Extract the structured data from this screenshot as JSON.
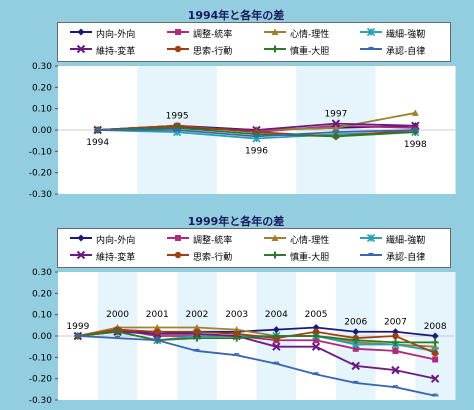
{
  "series_styles": [
    {
      "name": "内向-外向",
      "color": "#1a1a7a",
      "marker": "diamond"
    },
    {
      "name": "調整-統率",
      "color": "#b0297a",
      "marker": "square"
    },
    {
      "name": "心情-理性",
      "color": "#a08030",
      "marker": "triangle"
    },
    {
      "name": "繊細-強靭",
      "color": "#2aa0b0",
      "marker": "cross"
    },
    {
      "name": "維持-変革",
      "color": "#6a1a80",
      "marker": "x"
    },
    {
      "name": "思索-行動",
      "color": "#a04010",
      "marker": "circle"
    },
    {
      "name": "慎重-大胆",
      "color": "#2a7a2a",
      "marker": "plus"
    },
    {
      "name": "承認-自律",
      "color": "#3a66b0",
      "marker": "dash"
    }
  ],
  "chart_data": [
    {
      "type": "line",
      "title": "1994年と各年の差",
      "x": [
        "1994",
        "1995",
        "1996",
        "1997",
        "1998"
      ],
      "ylim": [
        -0.3,
        0.3
      ],
      "yticks": [
        "0.30",
        "0.20",
        "0.10",
        "0.00",
        "-0.10",
        "-0.20",
        "-0.30"
      ],
      "series": [
        {
          "name": "内向-外向",
          "values": [
            0.0,
            0.02,
            0.0,
            0.01,
            0.02
          ]
        },
        {
          "name": "調整-統率",
          "values": [
            0.0,
            0.02,
            -0.01,
            0.02,
            0.01
          ]
        },
        {
          "name": "心情-理性",
          "values": [
            0.0,
            0.01,
            0.0,
            0.01,
            0.08
          ]
        },
        {
          "name": "繊細-強靭",
          "values": [
            0.0,
            -0.01,
            -0.04,
            -0.02,
            -0.01
          ]
        },
        {
          "name": "維持-変革",
          "values": [
            0.0,
            0.01,
            0.0,
            0.03,
            0.02
          ]
        },
        {
          "name": "思索-行動",
          "values": [
            0.0,
            0.02,
            -0.01,
            -0.03,
            0.0
          ]
        },
        {
          "name": "慎重-大胆",
          "values": [
            0.0,
            0.01,
            -0.02,
            -0.03,
            -0.01
          ]
        },
        {
          "name": "承認-自律",
          "values": [
            0.0,
            0.0,
            -0.03,
            -0.01,
            0.0
          ]
        }
      ]
    },
    {
      "type": "line",
      "title": "1999年と各年の差",
      "x": [
        "1999",
        "2000",
        "2001",
        "2002",
        "2003",
        "2004",
        "2005",
        "2006",
        "2007",
        "2008"
      ],
      "ylim": [
        -0.3,
        0.3
      ],
      "yticks": [
        "0.30",
        "0.20",
        "0.10",
        "0.00",
        "-0.10",
        "-0.20",
        "-0.30"
      ],
      "series": [
        {
          "name": "内向-外向",
          "values": [
            0.0,
            0.03,
            0.01,
            0.02,
            0.02,
            0.03,
            0.04,
            0.02,
            0.02,
            0.0
          ]
        },
        {
          "name": "調整-統率",
          "values": [
            0.0,
            0.03,
            0.0,
            0.0,
            0.0,
            -0.02,
            -0.02,
            -0.06,
            -0.07,
            -0.11
          ]
        },
        {
          "name": "心情-理性",
          "values": [
            0.0,
            0.04,
            0.04,
            0.04,
            0.03,
            0.0,
            0.0,
            -0.03,
            -0.04,
            -0.05
          ]
        },
        {
          "name": "繊細-強靭",
          "values": [
            0.0,
            0.02,
            -0.02,
            0.0,
            0.0,
            0.0,
            0.0,
            -0.04,
            -0.04,
            -0.07
          ]
        },
        {
          "name": "維持-変革",
          "values": [
            0.0,
            0.02,
            0.01,
            0.01,
            0.0,
            -0.05,
            -0.05,
            -0.14,
            -0.16,
            -0.2
          ]
        },
        {
          "name": "思索-行動",
          "values": [
            0.0,
            0.03,
            0.02,
            0.02,
            0.01,
            -0.01,
            0.02,
            -0.01,
            0.0,
            -0.08
          ]
        },
        {
          "name": "慎重-大胆",
          "values": [
            0.0,
            0.02,
            -0.02,
            -0.01,
            -0.01,
            0.0,
            0.0,
            -0.02,
            -0.03,
            -0.03
          ]
        },
        {
          "name": "承認-自律",
          "values": [
            0.0,
            -0.01,
            -0.02,
            -0.07,
            -0.09,
            -0.13,
            -0.18,
            -0.22,
            -0.24,
            -0.28
          ]
        }
      ]
    }
  ]
}
